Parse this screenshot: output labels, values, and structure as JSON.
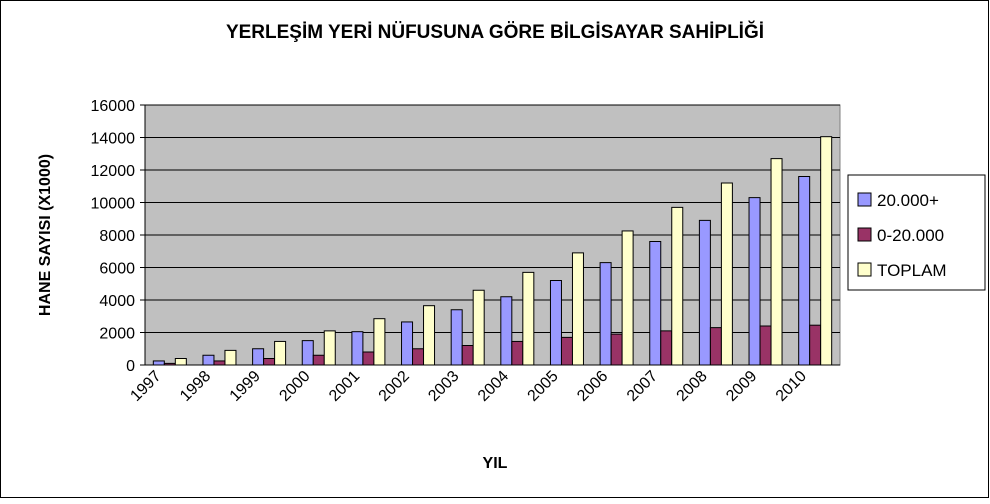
{
  "chart_data": {
    "type": "bar",
    "title": "YERLEŞİM YERİ NÜFUSUNA GÖRE BİLGİSAYAR SAHİPLİĞİ",
    "x_label": "YIL",
    "y_label": "HANE SAYISI (X1000)",
    "categories": [
      "1997",
      "1998",
      "1999",
      "2000",
      "2001",
      "2002",
      "2003",
      "2004",
      "2005",
      "2006",
      "2007",
      "2008",
      "2009",
      "2010"
    ],
    "series": [
      {
        "name": "20.000+",
        "color": "#9999ff",
        "values": [
          250,
          600,
          1000,
          1500,
          2050,
          2650,
          3400,
          4200,
          5200,
          6300,
          7600,
          8900,
          10300,
          11600
        ]
      },
      {
        "name": "0-20.000",
        "color": "#993366",
        "values": [
          100,
          250,
          400,
          600,
          800,
          1000,
          1200,
          1450,
          1700,
          1900,
          2100,
          2300,
          2400,
          2450
        ]
      },
      {
        "name": "TOPLAM",
        "color": "#ffffcc",
        "values": [
          400,
          900,
          1450,
          2100,
          2850,
          3650,
          4600,
          5700,
          6900,
          8250,
          9700,
          11200,
          12700,
          14050
        ]
      }
    ],
    "ylim": [
      0,
      16000
    ],
    "yticks": [
      0,
      2000,
      4000,
      6000,
      8000,
      10000,
      12000,
      14000,
      16000
    ],
    "grid": true,
    "legend": "right"
  }
}
